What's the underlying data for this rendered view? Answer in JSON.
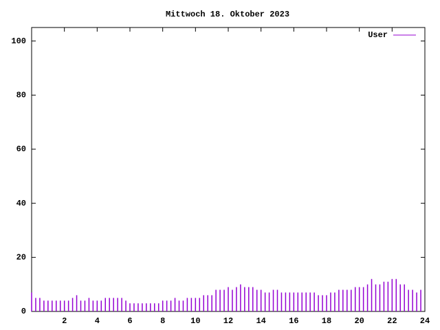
{
  "chart_data": {
    "type": "impulse",
    "title": "Mittwoch 18. Oktober 2023",
    "x": [
      0,
      0.25,
      0.5,
      0.75,
      1,
      1.25,
      1.5,
      1.75,
      2,
      2.25,
      2.5,
      2.75,
      3,
      3.25,
      3.5,
      3.75,
      4,
      4.25,
      4.5,
      4.75,
      5,
      5.25,
      5.5,
      5.75,
      6,
      6.25,
      6.5,
      6.75,
      7,
      7.25,
      7.5,
      7.75,
      8,
      8.25,
      8.5,
      8.75,
      9,
      9.25,
      9.5,
      9.75,
      10,
      10.25,
      10.5,
      10.75,
      11,
      11.25,
      11.5,
      11.75,
      12,
      12.25,
      12.5,
      12.75,
      13,
      13.25,
      13.5,
      13.75,
      14,
      14.25,
      14.5,
      14.75,
      15,
      15.25,
      15.5,
      15.75,
      16,
      16.25,
      16.5,
      16.75,
      17,
      17.25,
      17.5,
      17.75,
      18,
      18.25,
      18.5,
      18.75,
      19,
      19.25,
      19.5,
      19.75,
      20,
      20.25,
      20.5,
      20.75,
      21,
      21.25,
      21.5,
      21.75,
      22,
      22.25,
      22.5,
      22.75,
      23,
      23.25,
      23.5,
      23.75
    ],
    "series": [
      {
        "name": "User",
        "color": "#9400d3",
        "values": [
          7,
          5,
          5,
          4,
          4,
          4,
          4,
          4,
          4,
          4,
          5,
          6,
          4,
          4,
          5,
          4,
          4,
          4,
          5,
          5,
          5,
          5,
          5,
          4,
          3,
          3,
          3,
          3,
          3,
          3,
          3,
          3,
          4,
          4,
          4,
          5,
          4,
          4,
          5,
          5,
          5,
          5,
          6,
          6,
          6,
          8,
          8,
          8,
          9,
          8,
          9,
          10,
          9,
          9,
          9,
          8,
          8,
          7,
          7,
          8,
          8,
          7,
          7,
          7,
          7,
          7,
          7,
          7,
          7,
          7,
          6,
          6,
          6,
          7,
          7,
          8,
          8,
          8,
          8,
          9,
          9,
          9,
          10,
          12,
          10,
          10,
          11,
          11,
          12,
          12,
          10,
          10,
          8,
          8,
          7,
          8
        ]
      }
    ],
    "xlim": [
      0,
      24
    ],
    "xticks": [
      2,
      4,
      6,
      8,
      10,
      12,
      14,
      16,
      18,
      20,
      22,
      24
    ],
    "ylim": [
      0,
      105
    ],
    "yticks": [
      0,
      20,
      40,
      60,
      80,
      100
    ],
    "legend": "top right"
  }
}
